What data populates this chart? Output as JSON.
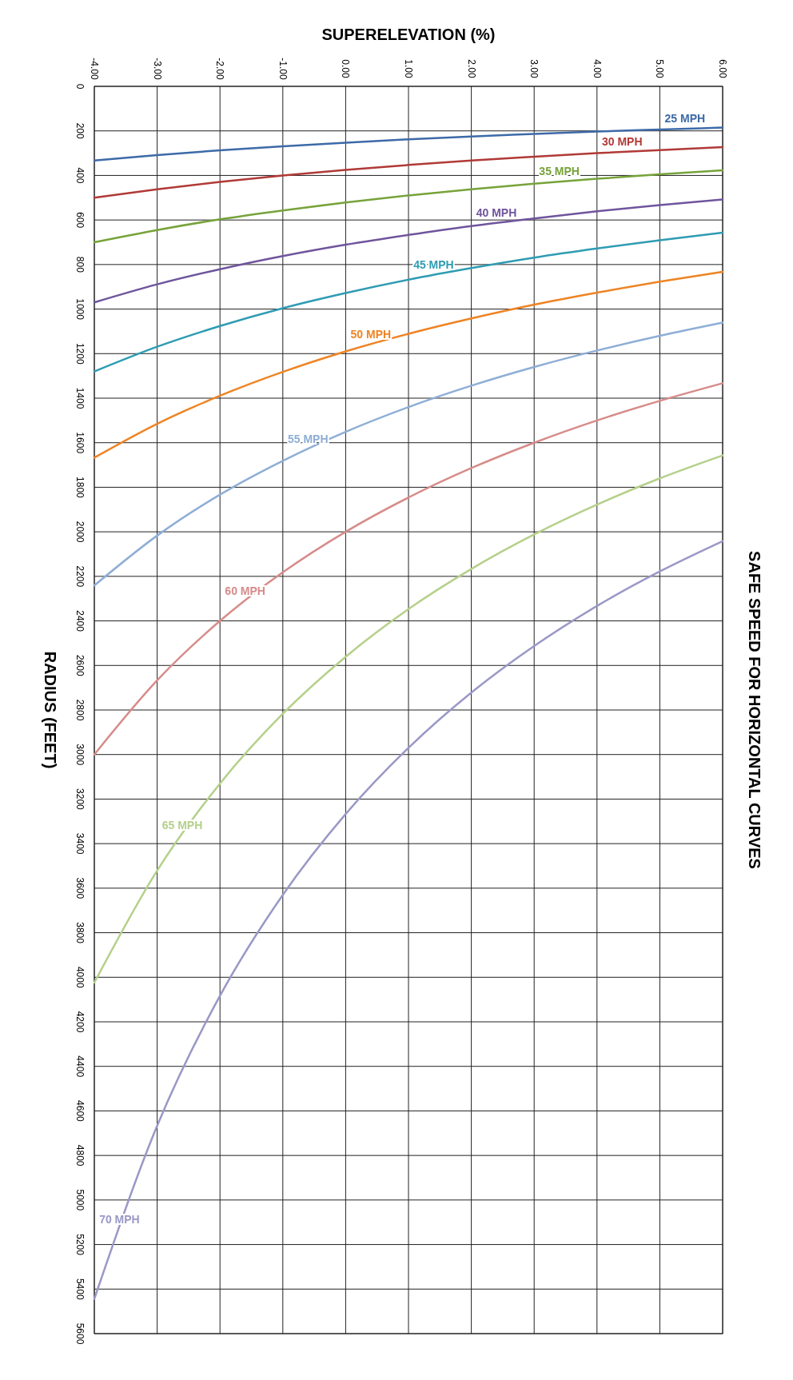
{
  "chart_data": {
    "type": "line",
    "title": "SAFE SPEED FOR HORIZONTAL CURVES",
    "xlabel": "SUPERELEVATION (%)",
    "ylabel": "RADIUS (FEET)",
    "x": [
      -4,
      -3,
      -2,
      -1,
      0,
      1,
      2,
      3,
      4,
      5,
      6
    ],
    "xlim": [
      -4,
      6
    ],
    "xticks": [
      {
        "value": -4,
        "label": "-4.00"
      },
      {
        "value": -3,
        "label": "-3.00"
      },
      {
        "value": -2,
        "label": "-2.00"
      },
      {
        "value": -1,
        "label": "-1.00"
      },
      {
        "value": 0,
        "label": "0.00"
      },
      {
        "value": 1,
        "label": "1.00"
      },
      {
        "value": 2,
        "label": "2.00"
      },
      {
        "value": 3,
        "label": "3.00"
      },
      {
        "value": 4,
        "label": "4.00"
      },
      {
        "value": 5,
        "label": "5.00"
      },
      {
        "value": 6,
        "label": "6.00"
      }
    ],
    "ylim": [
      5600,
      0
    ],
    "yticks": [
      0,
      200,
      400,
      600,
      800,
      1000,
      1200,
      1400,
      1600,
      1800,
      2000,
      2200,
      2400,
      2600,
      2800,
      3000,
      3200,
      3400,
      3600,
      3800,
      4000,
      4200,
      4400,
      4600,
      4800,
      5000,
      5200,
      5400,
      5600
    ],
    "grid": true,
    "marker": "none",
    "line_style": "solid",
    "series": [
      {
        "name": "25 MPH",
        "color": "#3d6aa8",
        "values": [
          333,
          309,
          287,
          269,
          253,
          238,
          225,
          214,
          203,
          194,
          185
        ]
      },
      {
        "name": "30 MPH",
        "color": "#b03a37",
        "values": [
          500,
          462,
          429,
          400,
          375,
          353,
          333,
          316,
          300,
          286,
          273
        ]
      },
      {
        "name": "35 MPH",
        "color": "#77a33a",
        "values": [
          700,
          645,
          597,
          557,
          521,
          490,
          462,
          437,
          415,
          395,
          377
        ]
      },
      {
        "name": "40 MPH",
        "color": "#6f559c",
        "values": [
          970,
          889,
          821,
          762,
          711,
          667,
          627,
          593,
          561,
          533,
          508
        ]
      },
      {
        "name": "45 MPH",
        "color": "#2f9cb3",
        "values": [
          1280,
          1169,
          1076,
          996,
          928,
          868,
          816,
          769,
          728,
          691,
          657
        ]
      },
      {
        "name": "50 MPH",
        "color": "#ee8424",
        "values": [
          1667,
          1515,
          1389,
          1282,
          1190,
          1111,
          1042,
          980,
          926,
          877,
          833
        ]
      },
      {
        "name": "55 MPH",
        "color": "#8eaed6",
        "values": [
          2241,
          2017,
          1833,
          1681,
          1551,
          1440,
          1344,
          1260,
          1186,
          1120,
          1061
        ]
      },
      {
        "name": "60 MPH",
        "color": "#d68c8a",
        "values": [
          3000,
          2667,
          2400,
          2182,
          2000,
          1846,
          1714,
          1600,
          1500,
          1412,
          1333
        ]
      },
      {
        "name": "65 MPH",
        "color": "#b5d08a",
        "values": [
          4024,
          3521,
          3130,
          2817,
          2561,
          2347,
          2167,
          2012,
          1878,
          1760,
          1657
        ]
      },
      {
        "name": "70 MPH",
        "color": "#9a98c6",
        "values": [
          5444,
          4667,
          4083,
          3630,
          3267,
          2970,
          2722,
          2513,
          2333,
          2178,
          2042
        ]
      }
    ]
  }
}
